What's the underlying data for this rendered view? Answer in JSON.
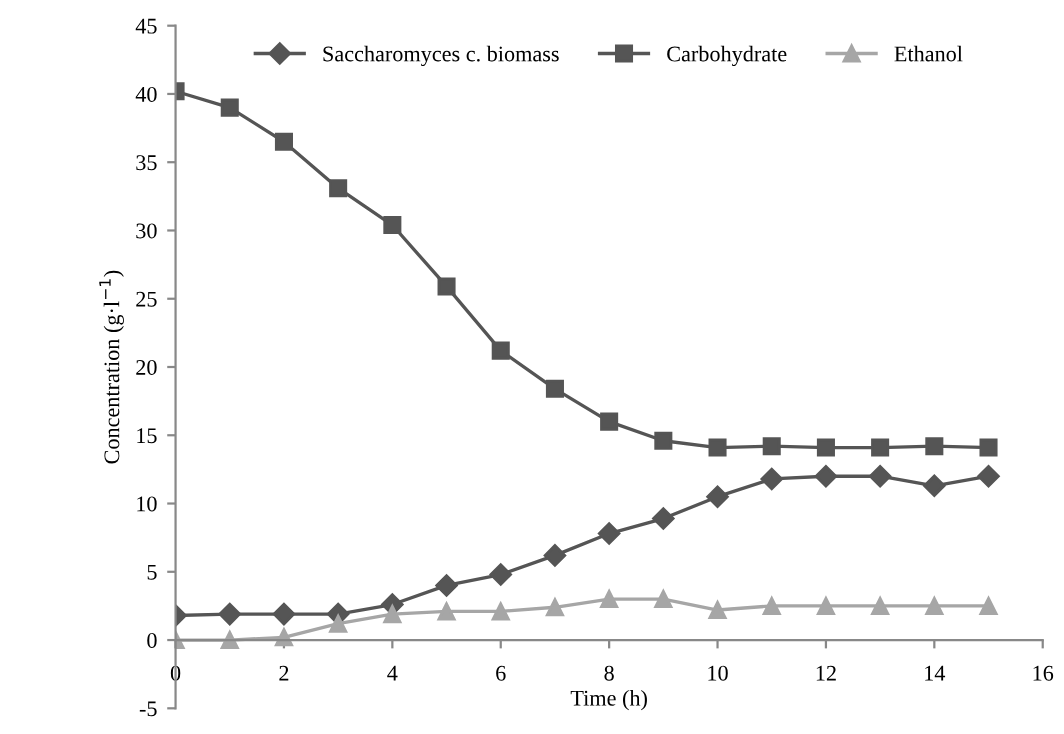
{
  "chart_data": {
    "type": "line",
    "xlabel": "Time (h)",
    "ylabel": "Concentration (g·l$^{−1}$)",
    "x": [
      0,
      1,
      2,
      3,
      4,
      5,
      6,
      7,
      8,
      9,
      10,
      11,
      12,
      13,
      14,
      15
    ],
    "series": [
      {
        "name": "Saccharomyces c. biomass",
        "color": "#555555",
        "marker": "diamond",
        "values": [
          1.8,
          1.9,
          1.9,
          1.9,
          2.6,
          4.0,
          4.8,
          6.2,
          7.8,
          8.9,
          10.5,
          11.8,
          12.0,
          12.0,
          11.3,
          12.0
        ]
      },
      {
        "name": "Carbohydrate",
        "color": "#555555",
        "marker": "square",
        "values": [
          40.2,
          39.0,
          36.5,
          33.1,
          30.4,
          25.9,
          21.2,
          18.4,
          16.0,
          14.6,
          14.1,
          14.2,
          14.1,
          14.1,
          14.2,
          14.1
        ]
      },
      {
        "name": "Ethanol",
        "color": "#a6a6a6",
        "marker": "triangle",
        "values": [
          0.0,
          0.0,
          0.2,
          1.2,
          1.9,
          2.1,
          2.1,
          2.4,
          3.0,
          3.0,
          2.2,
          2.5,
          2.5,
          2.5,
          2.5,
          2.5
        ]
      }
    ],
    "xlim": [
      0,
      16
    ],
    "xticks": [
      0,
      2,
      4,
      6,
      8,
      10,
      12,
      14,
      16
    ],
    "ylim": [
      -5,
      45
    ],
    "yticks": [
      -5,
      0,
      5,
      10,
      15,
      20,
      25,
      30,
      35,
      40,
      45
    ],
    "grid": false,
    "legend": "top"
  }
}
